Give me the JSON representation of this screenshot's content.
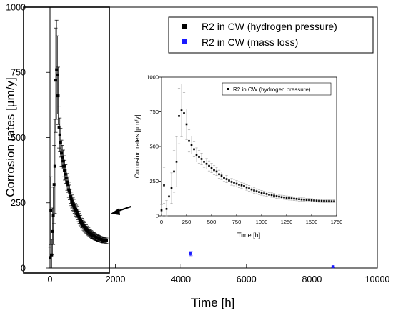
{
  "chart_data": [
    {
      "type": "scatter",
      "xlabel": "Time [h]",
      "ylabel": "Corrosion rates [µm/y]",
      "xlim": [
        0,
        10000
      ],
      "ylim": [
        0,
        1000
      ],
      "xticks": [
        0,
        2000,
        4000,
        6000,
        8000,
        10000
      ],
      "yticks": [
        0,
        250,
        500,
        750,
        1000
      ],
      "x_tick_labels": [
        "0",
        "2000",
        "4000",
        "6000",
        "8000",
        "10000"
      ],
      "y_tick_labels": [
        "0",
        "250",
        "500",
        "750",
        "1000"
      ],
      "grid": false,
      "legend_position": "top-right",
      "series": [
        {
          "name": "R2 in CW (hydrogen pressure)",
          "color": "#000000",
          "marker": "square",
          "x": [
            0,
            25,
            50,
            75,
            100,
            125,
            150,
            175,
            200,
            225,
            250,
            275,
            300,
            325,
            350,
            375,
            400,
            425,
            450,
            475,
            500,
            525,
            550,
            575,
            600,
            625,
            650,
            675,
            700,
            725,
            750,
            775,
            800,
            825,
            850,
            875,
            900,
            925,
            950,
            975,
            1000,
            1025,
            1050,
            1075,
            1100,
            1125,
            1150,
            1175,
            1200,
            1225,
            1250,
            1275,
            1300,
            1325,
            1350,
            1375,
            1400,
            1425,
            1450,
            1475,
            1500,
            1525,
            1550,
            1575,
            1600,
            1625,
            1650,
            1675,
            1700,
            1725
          ],
          "y": [
            40,
            220,
            50,
            140,
            200,
            320,
            390,
            720,
            760,
            740,
            660,
            540,
            510,
            480,
            440,
            425,
            410,
            390,
            375,
            360,
            345,
            330,
            320,
            300,
            290,
            275,
            265,
            255,
            245,
            240,
            232,
            225,
            220,
            215,
            205,
            198,
            190,
            183,
            177,
            172,
            166,
            162,
            158,
            153,
            150,
            146,
            142,
            139,
            135,
            133,
            130,
            128,
            126,
            124,
            122,
            120,
            118,
            117,
            115,
            114,
            112,
            111,
            110,
            109,
            108,
            107,
            106,
            106,
            105,
            105
          ],
          "error": [
            40,
            130,
            60,
            90,
            110,
            150,
            180,
            200,
            190,
            150,
            110,
            80,
            65,
            55,
            50,
            45,
            42,
            40,
            38,
            36,
            34,
            32,
            30,
            29,
            28,
            27,
            26,
            25,
            24,
            23,
            22,
            22,
            21,
            21,
            20,
            20,
            19,
            19,
            18,
            18,
            17,
            17,
            16,
            16,
            16,
            15,
            15,
            15,
            14,
            14,
            14,
            14,
            13,
            13,
            13,
            13,
            12,
            12,
            12,
            12,
            12,
            11,
            11,
            11,
            11,
            11,
            10,
            10,
            10,
            10
          ]
        },
        {
          "name": "R2 in CW (mass loss)",
          "color": "#1a1aff",
          "marker": "square",
          "x": [
            4300,
            8650
          ],
          "y": [
            55,
            5
          ],
          "error": [
            8,
            3
          ]
        }
      ],
      "annotations": [
        {
          "type": "box",
          "x_range": [
            0,
            1800
          ],
          "y_range": [
            0,
            1000
          ]
        },
        {
          "type": "arrow",
          "from": "inset",
          "to": "box"
        }
      ]
    },
    {
      "type": "scatter",
      "role": "inset",
      "xlabel": "Time [h]",
      "ylabel": "Corrosion rates [µm/y]",
      "xlim": [
        0,
        1750
      ],
      "ylim": [
        0,
        1000
      ],
      "xticks": [
        0,
        250,
        500,
        750,
        1000,
        1250,
        1500,
        1750
      ],
      "yticks": [
        0,
        250,
        500,
        750,
        1000
      ],
      "x_tick_labels": [
        "0",
        "250",
        "500",
        "750",
        "1000",
        "1250",
        "1500",
        "1750"
      ],
      "y_tick_labels": [
        "0",
        "250",
        "500",
        "750",
        "1000"
      ],
      "legend_position": "top-right",
      "series": [
        {
          "name": "R2 in CW (hydrogen pressure)",
          "color": "#000000",
          "marker": "square",
          "x": [
            0,
            25,
            50,
            75,
            100,
            125,
            150,
            175,
            200,
            225,
            250,
            275,
            300,
            325,
            350,
            375,
            400,
            425,
            450,
            475,
            500,
            525,
            550,
            575,
            600,
            625,
            650,
            675,
            700,
            725,
            750,
            775,
            800,
            825,
            850,
            875,
            900,
            925,
            950,
            975,
            1000,
            1025,
            1050,
            1075,
            1100,
            1125,
            1150,
            1175,
            1200,
            1225,
            1250,
            1275,
            1300,
            1325,
            1350,
            1375,
            1400,
            1425,
            1450,
            1475,
            1500,
            1525,
            1550,
            1575,
            1600,
            1625,
            1650,
            1675,
            1700,
            1725
          ],
          "y": [
            40,
            220,
            50,
            140,
            200,
            320,
            390,
            720,
            760,
            740,
            660,
            540,
            510,
            480,
            440,
            425,
            410,
            390,
            375,
            360,
            345,
            330,
            320,
            300,
            290,
            275,
            265,
            255,
            245,
            240,
            232,
            225,
            220,
            215,
            205,
            198,
            190,
            183,
            177,
            172,
            166,
            162,
            158,
            153,
            150,
            146,
            142,
            139,
            135,
            133,
            130,
            128,
            126,
            124,
            122,
            120,
            118,
            117,
            115,
            114,
            112,
            111,
            110,
            109,
            108,
            107,
            106,
            106,
            105,
            105
          ],
          "error": [
            40,
            130,
            60,
            90,
            110,
            150,
            180,
            200,
            190,
            150,
            110,
            80,
            65,
            55,
            50,
            45,
            42,
            40,
            38,
            36,
            34,
            32,
            30,
            29,
            28,
            27,
            26,
            25,
            24,
            23,
            22,
            22,
            21,
            21,
            20,
            20,
            19,
            19,
            18,
            18,
            17,
            17,
            16,
            16,
            16,
            15,
            15,
            15,
            14,
            14,
            14,
            14,
            13,
            13,
            13,
            13,
            12,
            12,
            12,
            12,
            12,
            11,
            11,
            11,
            11,
            11,
            10,
            10,
            10,
            10
          ]
        }
      ]
    }
  ]
}
